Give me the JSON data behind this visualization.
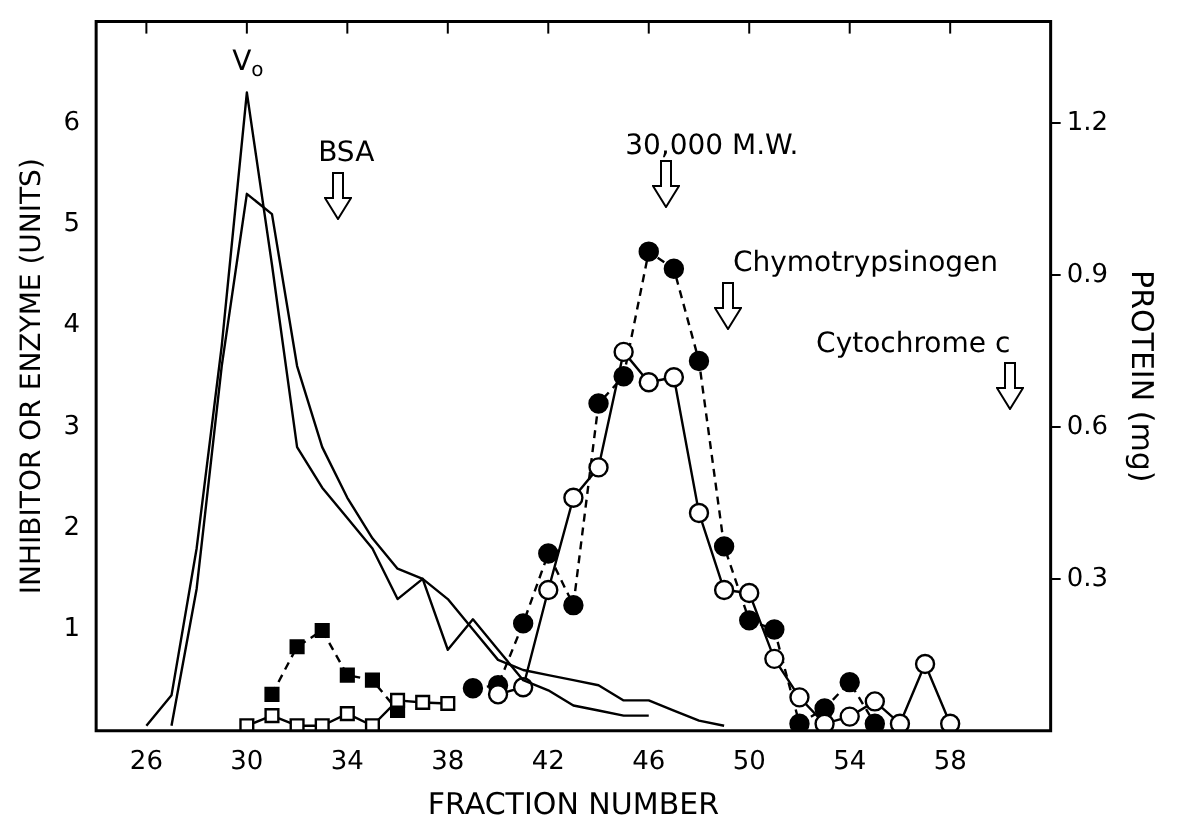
{
  "chart_data": {
    "type": "line",
    "xlabel": "FRACTION NUMBER",
    "ylabel": "INHIBITOR OR ENZYME (UNITS)",
    "y2label": "PROTEIN (mg)",
    "xlim": [
      24,
      62
    ],
    "xticks": [
      26,
      30,
      34,
      38,
      42,
      46,
      50,
      54,
      58
    ],
    "ylim": [
      0,
      7
    ],
    "yticks": [
      1,
      2,
      3,
      4,
      5,
      6
    ],
    "y2lim": [
      0,
      1.4
    ],
    "y2ticks": [
      0.3,
      0.6,
      0.9,
      1.2
    ],
    "grid": false,
    "legend": false,
    "series": [
      {
        "axis": "y2",
        "color": "#000000",
        "marker": "none",
        "line_style": "solid",
        "x": [
          26,
          27,
          28,
          29,
          30,
          31,
          32,
          33,
          34,
          35,
          36,
          37,
          38,
          39,
          40,
          41,
          42,
          43,
          44,
          45,
          46
        ],
        "values": [
          0.01,
          0.07,
          0.36,
          0.76,
          1.26,
          0.92,
          0.56,
          0.48,
          0.42,
          0.36,
          0.26,
          0.3,
          0.16,
          0.22,
          0.16,
          0.1,
          0.08,
          0.05,
          0.04,
          0.03,
          0.03
        ]
      },
      {
        "axis": "y2",
        "color": "#000000",
        "marker": "none",
        "line_style": "solid",
        "x": [
          27,
          28,
          29,
          30,
          31,
          32,
          33,
          34,
          35,
          36,
          37,
          38,
          39,
          40,
          41,
          42,
          43,
          44,
          45,
          46,
          47,
          48,
          49
        ],
        "values": [
          0.01,
          0.28,
          0.72,
          1.06,
          1.02,
          0.72,
          0.56,
          0.46,
          0.38,
          0.32,
          0.3,
          0.26,
          0.2,
          0.14,
          0.12,
          0.11,
          0.1,
          0.09,
          0.06,
          0.06,
          0.04,
          0.02,
          0.01
        ]
      },
      {
        "color": "#000000",
        "marker": "square",
        "line_style": "dashed",
        "x": [
          31,
          32,
          33,
          34,
          35,
          36
        ],
        "values": [
          0.36,
          0.83,
          0.99,
          0.55,
          0.5,
          0.2
        ]
      },
      {
        "color": "#000000",
        "marker": "square",
        "line_style": "solid",
        "x": [
          30,
          31,
          32,
          33,
          34,
          35,
          36,
          37,
          38
        ],
        "values": [
          0.05,
          0.15,
          0.05,
          0.05,
          0.17,
          0.05,
          0.3,
          0.28,
          0.27
        ]
      },
      {
        "color": "#000000",
        "marker": "circle",
        "line_style": "dashed",
        "x": [
          39,
          40,
          41,
          42,
          43,
          44,
          45,
          46,
          47,
          48,
          49,
          50,
          51,
          52,
          53,
          54,
          55
        ],
        "values": [
          0.42,
          0.45,
          1.06,
          1.75,
          1.24,
          3.23,
          3.5,
          4.73,
          4.56,
          3.65,
          1.82,
          1.09,
          1.0,
          0.07,
          0.22,
          0.48,
          0.07
        ]
      },
      {
        "color": "#000000",
        "marker": "circle",
        "line_style": "solid",
        "x": [
          40,
          41,
          42,
          43,
          44,
          45,
          46,
          47,
          48,
          49,
          50,
          51,
          52,
          53,
          54,
          55,
          56,
          57,
          58
        ],
        "values": [
          0.36,
          0.43,
          1.39,
          2.3,
          2.6,
          3.74,
          3.44,
          3.49,
          2.15,
          1.39,
          1.36,
          0.71,
          0.33,
          0.07,
          0.14,
          0.29,
          0.07,
          0.66,
          0.07
        ]
      }
    ],
    "annotations": [
      "V$_{o}$",
      "BSA",
      "30,000 M.W.",
      "Chymotrypsinogen",
      "Cytochrome c"
    ]
  }
}
